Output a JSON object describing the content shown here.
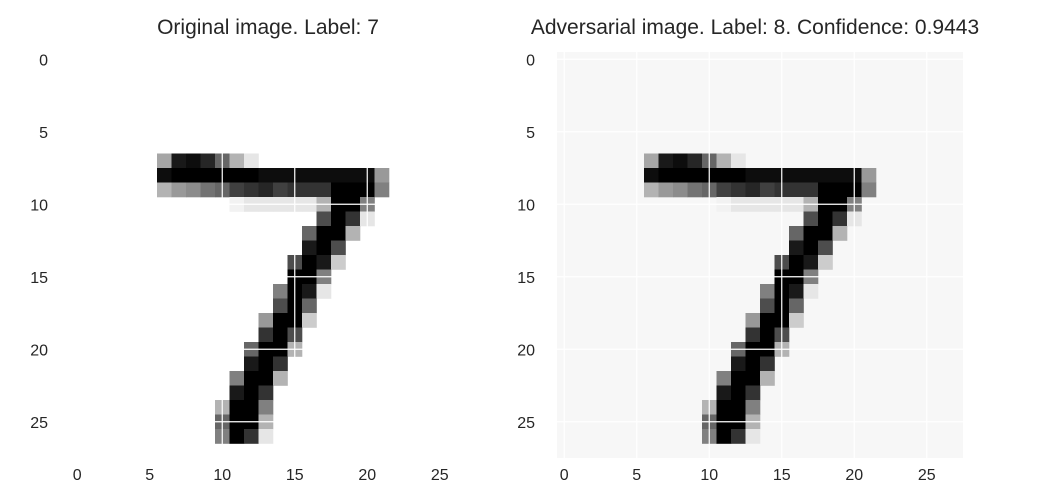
{
  "panels": [
    {
      "title": "Original image. Label: 7",
      "xticks": [
        "0",
        "5",
        "10",
        "15",
        "20",
        "25"
      ],
      "yticks": [
        "0",
        "5",
        "10",
        "15",
        "20",
        "25"
      ],
      "background_shade": 0.0
    },
    {
      "title": "Adversarial image. Label: 8. Confidence: 0.9443",
      "xticks": [
        "0",
        "5",
        "10",
        "15",
        "20",
        "25"
      ],
      "yticks": [
        "0",
        "5",
        "10",
        "15",
        "20",
        "25"
      ],
      "background_shade": 0.03
    }
  ],
  "colors": {
    "background": "#ffffff",
    "text": "#262626",
    "grid": "#ffffff",
    "ink": "#000000"
  },
  "chart_data": [
    {
      "type": "heatmap",
      "title": "Original image. Label: 7",
      "colormap": "gray_r",
      "grid": true,
      "xlim": [
        -0.5,
        27.5
      ],
      "ylim": [
        27.5,
        -0.5
      ],
      "shape": [
        28,
        28
      ],
      "pixels": [
        [
          7,
          6,
          0.35
        ],
        [
          7,
          7,
          0.9
        ],
        [
          7,
          8,
          0.95
        ],
        [
          7,
          9,
          0.85
        ],
        [
          7,
          10,
          0.6
        ],
        [
          7,
          11,
          0.3
        ],
        [
          7,
          12,
          0.1
        ],
        [
          8,
          6,
          0.95
        ],
        [
          8,
          7,
          1
        ],
        [
          8,
          8,
          1
        ],
        [
          8,
          9,
          1
        ],
        [
          8,
          10,
          1
        ],
        [
          8,
          11,
          1
        ],
        [
          8,
          12,
          1
        ],
        [
          8,
          13,
          0.95
        ],
        [
          8,
          14,
          0.95
        ],
        [
          8,
          15,
          0.95
        ],
        [
          8,
          16,
          0.95
        ],
        [
          8,
          17,
          0.95
        ],
        [
          8,
          18,
          0.95
        ],
        [
          8,
          19,
          0.95
        ],
        [
          8,
          20,
          0.95
        ],
        [
          8,
          21,
          0.4
        ],
        [
          9,
          6,
          0.3
        ],
        [
          9,
          7,
          0.4
        ],
        [
          9,
          8,
          0.45
        ],
        [
          9,
          9,
          0.55
        ],
        [
          9,
          10,
          0.6
        ],
        [
          9,
          11,
          0.75
        ],
        [
          9,
          12,
          0.8
        ],
        [
          9,
          13,
          0.85
        ],
        [
          9,
          14,
          0.75
        ],
        [
          9,
          15,
          0.8
        ],
        [
          9,
          16,
          0.8
        ],
        [
          9,
          17,
          0.8
        ],
        [
          9,
          18,
          1
        ],
        [
          9,
          19,
          1
        ],
        [
          9,
          20,
          1
        ],
        [
          9,
          21,
          0.5
        ],
        [
          10,
          11,
          0.05
        ],
        [
          10,
          12,
          0.1
        ],
        [
          10,
          13,
          0.1
        ],
        [
          10,
          14,
          0.1
        ],
        [
          10,
          15,
          0.1
        ],
        [
          10,
          16,
          0.1
        ],
        [
          10,
          17,
          0.3
        ],
        [
          10,
          18,
          1
        ],
        [
          10,
          19,
          1
        ],
        [
          10,
          20,
          0.5
        ],
        [
          11,
          17,
          0.7
        ],
        [
          11,
          18,
          1
        ],
        [
          11,
          19,
          0.8
        ],
        [
          11,
          20,
          0.1
        ],
        [
          12,
          16,
          0.6
        ],
        [
          12,
          17,
          1
        ],
        [
          12,
          18,
          1
        ],
        [
          12,
          19,
          0.3
        ],
        [
          13,
          16,
          0.9
        ],
        [
          13,
          17,
          1
        ],
        [
          13,
          18,
          0.7
        ],
        [
          14,
          15,
          0.7
        ],
        [
          14,
          16,
          1
        ],
        [
          14,
          17,
          0.9
        ],
        [
          14,
          18,
          0.2
        ],
        [
          15,
          15,
          1
        ],
        [
          15,
          16,
          1
        ],
        [
          15,
          17,
          0.5
        ],
        [
          16,
          14,
          0.5
        ],
        [
          16,
          15,
          1
        ],
        [
          16,
          16,
          0.9
        ],
        [
          16,
          17,
          0.1
        ],
        [
          17,
          14,
          0.7
        ],
        [
          17,
          15,
          1
        ],
        [
          17,
          16,
          0.6
        ],
        [
          18,
          13,
          0.4
        ],
        [
          18,
          14,
          1
        ],
        [
          18,
          15,
          1
        ],
        [
          18,
          16,
          0.2
        ],
        [
          19,
          13,
          0.8
        ],
        [
          19,
          14,
          1
        ],
        [
          19,
          15,
          0.7
        ],
        [
          20,
          12,
          0.6
        ],
        [
          20,
          13,
          1
        ],
        [
          20,
          14,
          1
        ],
        [
          20,
          15,
          0.3
        ],
        [
          21,
          12,
          0.9
        ],
        [
          21,
          13,
          1
        ],
        [
          21,
          14,
          0.8
        ],
        [
          22,
          11,
          0.5
        ],
        [
          22,
          12,
          1
        ],
        [
          22,
          13,
          1
        ],
        [
          22,
          14,
          0.3
        ],
        [
          23,
          11,
          0.9
        ],
        [
          23,
          12,
          1
        ],
        [
          23,
          13,
          0.8
        ],
        [
          24,
          10,
          0.3
        ],
        [
          24,
          11,
          1
        ],
        [
          24,
          12,
          1
        ],
        [
          24,
          13,
          0.5
        ],
        [
          25,
          10,
          0.6
        ],
        [
          25,
          11,
          1
        ],
        [
          25,
          12,
          1
        ],
        [
          25,
          13,
          0.3
        ],
        [
          26,
          10,
          0.5
        ],
        [
          26,
          11,
          1
        ],
        [
          26,
          12,
          0.8
        ],
        [
          26,
          13,
          0.1
        ]
      ]
    },
    {
      "type": "heatmap",
      "title": "Adversarial image. Label: 8. Confidence: 0.9443",
      "colormap": "gray_r",
      "grid": true,
      "xlim": [
        -0.5,
        27.5
      ],
      "ylim": [
        27.5,
        -0.5
      ],
      "shape": [
        28,
        28
      ],
      "background_value": 0.03,
      "pixels": "same as original image"
    }
  ]
}
